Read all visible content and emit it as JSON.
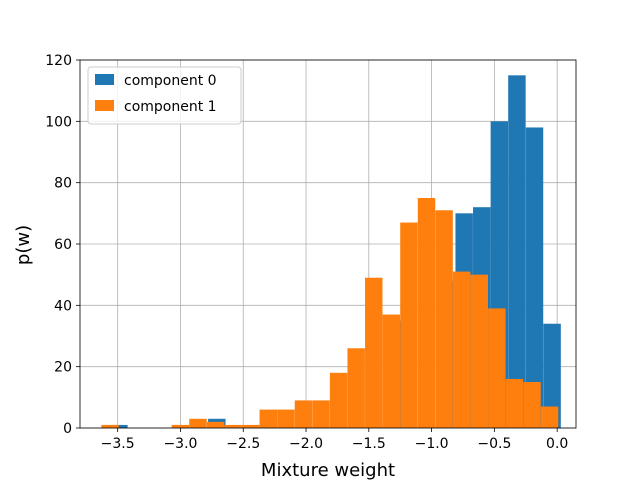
{
  "chart_data": {
    "type": "bar",
    "title": "",
    "xlabel": "Mixture weight",
    "ylabel": "p(w)",
    "xlim": [
      -3.8,
      0.15
    ],
    "ylim": [
      0,
      120
    ],
    "xticks": [
      -3.5,
      -3.0,
      -2.5,
      -2.0,
      -1.5,
      -1.0,
      -0.5,
      0.0
    ],
    "xtick_labels": [
      "−3.5",
      "−3.0",
      "−2.5",
      "−2.0",
      "−1.5",
      "−1.0",
      "−0.5",
      "0.0"
    ],
    "yticks": [
      0,
      20,
      40,
      60,
      80,
      100,
      120
    ],
    "ytick_labels": [
      "0",
      "20",
      "40",
      "60",
      "80",
      "100",
      "120"
    ],
    "grid": true,
    "legend_position": "top-left",
    "series": [
      {
        "name": "component 0",
        "color": "#1f77b4",
        "bin_width": 0.139,
        "bins": [
          {
            "x0": -3.56,
            "value": 1
          },
          {
            "x0": -2.78,
            "value": 3
          },
          {
            "x0": -1.36,
            "value": 35
          },
          {
            "x0": -0.95,
            "value": 48
          },
          {
            "x0": -0.81,
            "value": 70
          },
          {
            "x0": -0.67,
            "value": 72
          },
          {
            "x0": -0.53,
            "value": 100
          },
          {
            "x0": -0.39,
            "value": 115
          },
          {
            "x0": -0.25,
            "value": 98
          },
          {
            "x0": -0.11,
            "value": 34
          }
        ]
      },
      {
        "name": "component 1",
        "color": "#ff7f0e",
        "bin_width": 0.139,
        "bins": [
          {
            "x0": -3.63,
            "value": 1
          },
          {
            "x0": -3.07,
            "value": 1
          },
          {
            "x0": -2.93,
            "value": 3
          },
          {
            "x0": -2.79,
            "value": 2
          },
          {
            "x0": -2.65,
            "value": 1
          },
          {
            "x0": -2.51,
            "value": 1
          },
          {
            "x0": -2.37,
            "value": 6
          },
          {
            "x0": -2.23,
            "value": 6
          },
          {
            "x0": -2.09,
            "value": 9
          },
          {
            "x0": -1.95,
            "value": 9
          },
          {
            "x0": -1.81,
            "value": 18
          },
          {
            "x0": -1.67,
            "value": 26
          },
          {
            "x0": -1.53,
            "value": 49
          },
          {
            "x0": -1.39,
            "value": 37
          },
          {
            "x0": -1.25,
            "value": 67
          },
          {
            "x0": -1.11,
            "value": 75
          },
          {
            "x0": -0.97,
            "value": 71
          },
          {
            "x0": -0.83,
            "value": 51
          },
          {
            "x0": -0.69,
            "value": 50
          },
          {
            "x0": -0.55,
            "value": 39
          },
          {
            "x0": -0.41,
            "value": 16
          },
          {
            "x0": -0.27,
            "value": 15
          },
          {
            "x0": -0.13,
            "value": 7
          }
        ]
      }
    ]
  }
}
